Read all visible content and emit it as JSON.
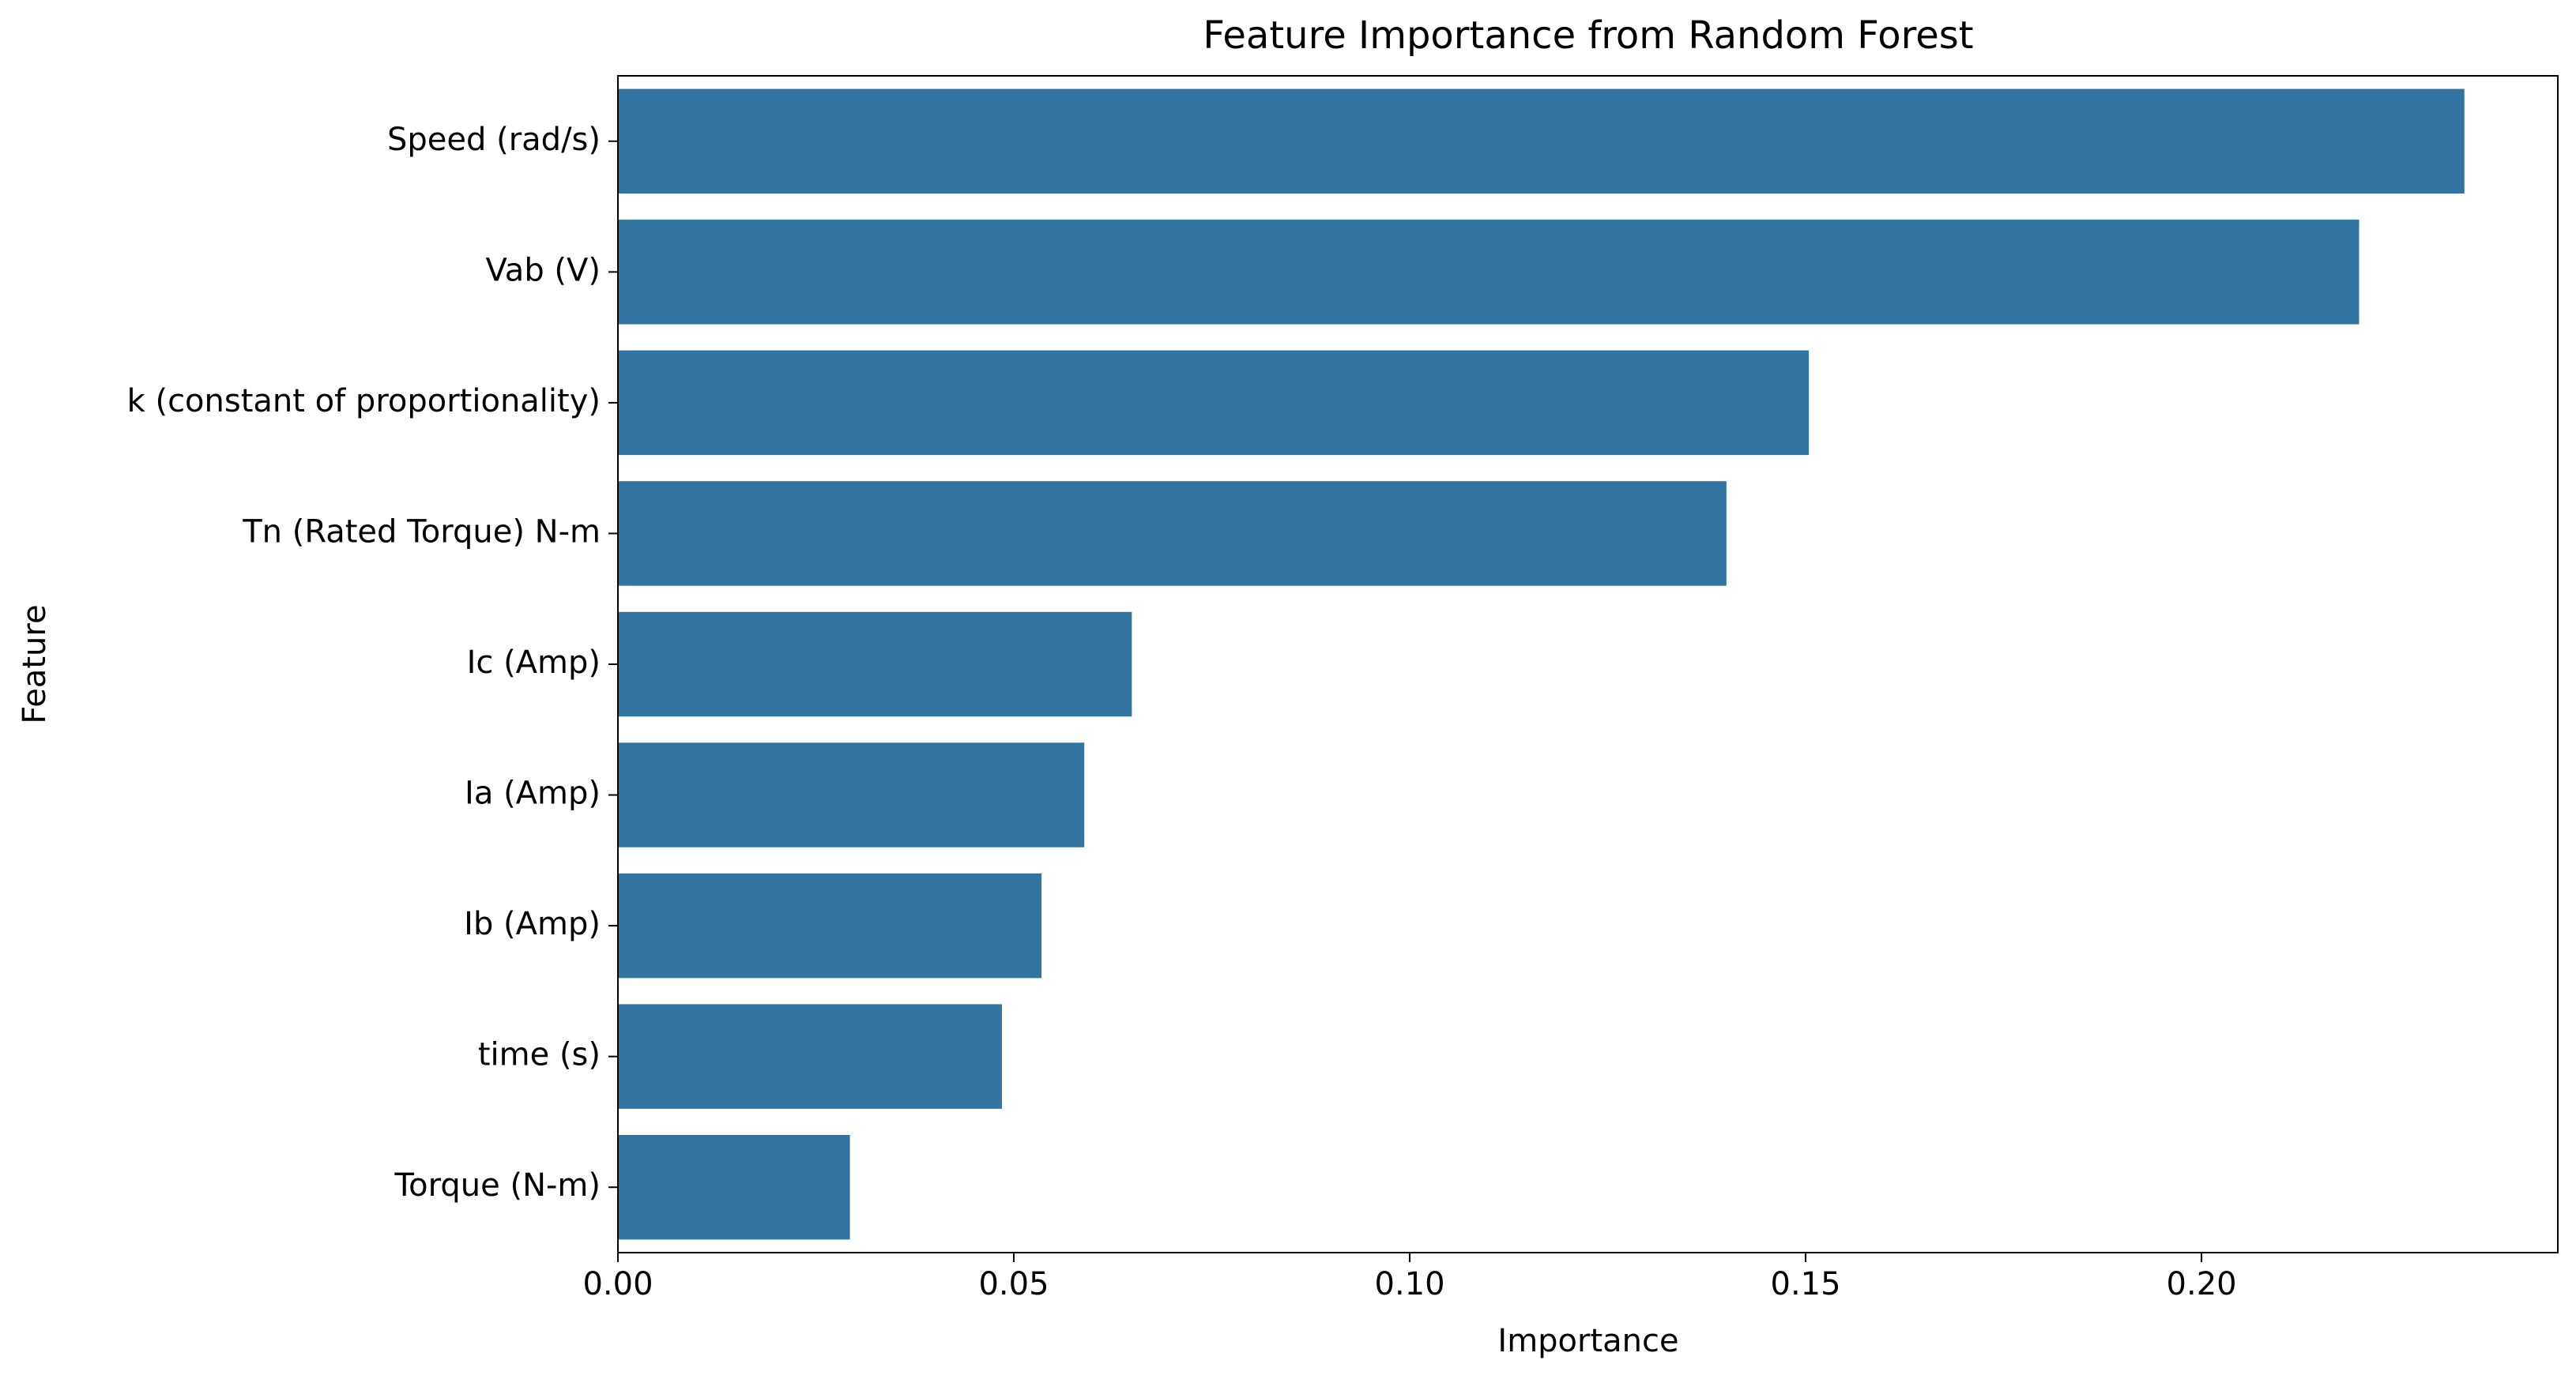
{
  "chart_data": {
    "type": "bar",
    "orientation": "horizontal",
    "title": "Feature Importance from Random Forest",
    "x_label": "Importance",
    "y_label": "Feature",
    "categories": [
      "Speed (rad/s)",
      "Vab (V)",
      "k (constant of proportionality)",
      "Tn (Rated Torque) N-m",
      "Ic (Amp)",
      "Ia (Amp)",
      "Ib (Amp)",
      "time (s)",
      "Torque (N-m)"
    ],
    "values": [
      0.2332,
      0.2199,
      0.1504,
      0.14,
      0.0649,
      0.0589,
      0.0535,
      0.0485,
      0.0293
    ],
    "color": "#3274a1",
    "xlim": [
      0,
      0.245
    ],
    "xticks": [
      {
        "value": 0,
        "label": "0.00"
      },
      {
        "value": 0.05,
        "label": "0.05"
      },
      {
        "value": 0.1,
        "label": "0.10"
      },
      {
        "value": 0.15,
        "label": "0.15"
      },
      {
        "value": 0.2,
        "label": "0.20"
      }
    ],
    "grid": false
  }
}
